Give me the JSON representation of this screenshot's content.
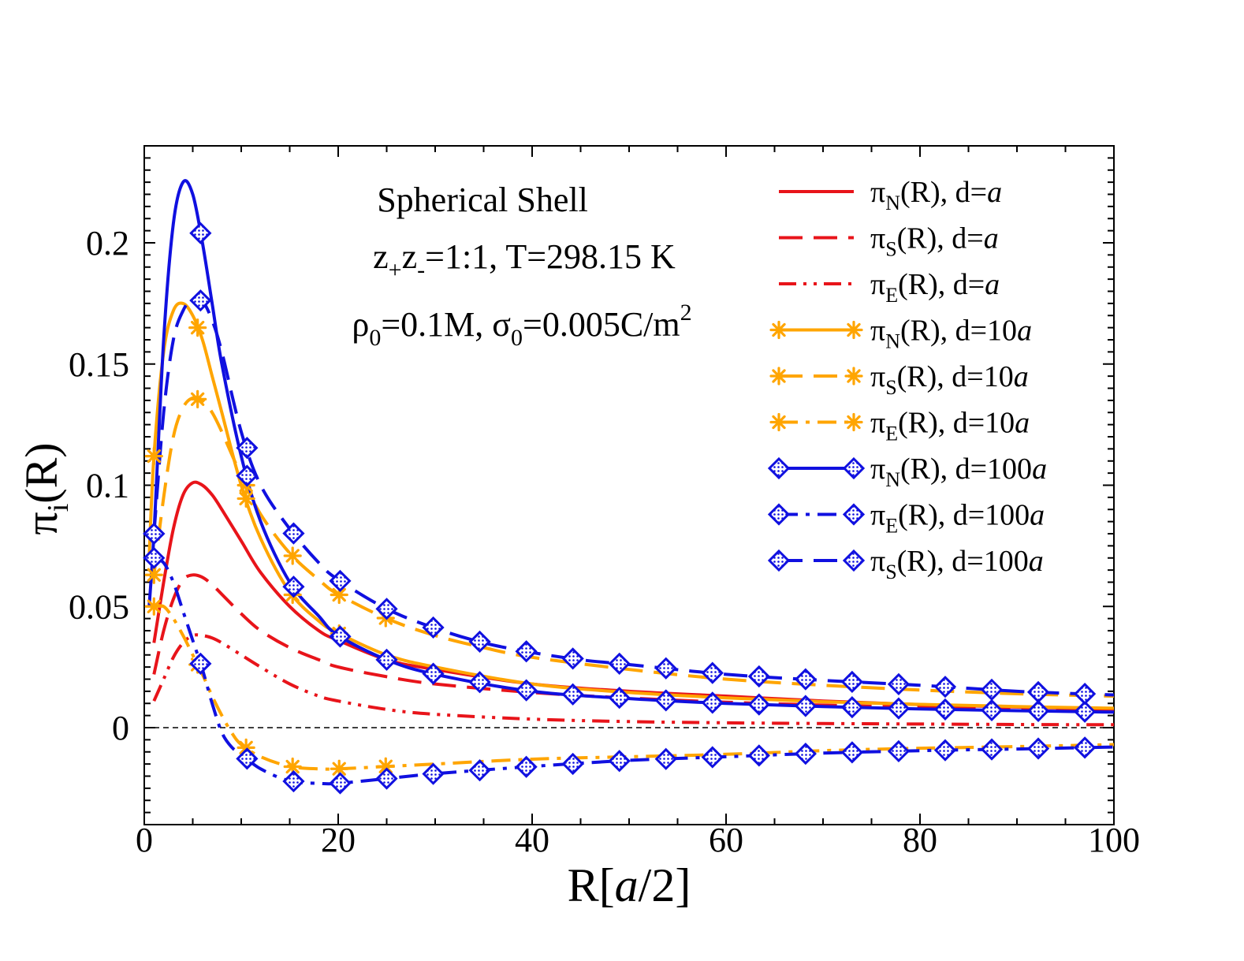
{
  "chart_data": {
    "type": "line",
    "title": "",
    "xlabel": "R[a/2]",
    "xlabel_parts": {
      "prefix": "R[",
      "italic": "a",
      "suffix": "/2]"
    },
    "ylabel": "π_i(R)",
    "ylabel_parts": {
      "main": "π",
      "sub": "i",
      "suffix": "(R)"
    },
    "xlim": [
      0,
      100
    ],
    "ylim": [
      -0.04,
      0.24
    ],
    "xticks": [
      0,
      20,
      40,
      60,
      80,
      100
    ],
    "xtick_labels": [
      "0",
      "20",
      "40",
      "60",
      "80",
      "100"
    ],
    "yticks": [
      0,
      0.05,
      0.1,
      0.15,
      0.2
    ],
    "ytick_labels": [
      "0",
      "0.05",
      "0.1",
      "0.15",
      "0.2"
    ],
    "zero_line": true,
    "grid": false,
    "legend_position": "top-right",
    "annotations": {
      "line1": "Spherical Shell",
      "line2": {
        "z": "z",
        "plus": "+",
        "minus": "-",
        "rest": "=1:1, T=298.15 K"
      },
      "line3": {
        "rho": "ρ",
        "rho_sub": "0",
        "rho_rest": "=0.1M, ",
        "sigma": "σ",
        "sigma_sub": "0",
        "sigma_rest": "=0.005C/m",
        "sup": "2"
      }
    },
    "colors": {
      "red": "#e8141a",
      "orange": "#ffa500",
      "blue": "#1010e0"
    },
    "series": [
      {
        "name": "π_N(R), d=a",
        "legend": {
          "sub": "N",
          "d": "d=",
          "unit": "a",
          "num": ""
        },
        "color": "#e8141a",
        "dash": "solid",
        "marker": "none",
        "x": [
          1,
          2,
          3,
          4,
          5,
          6,
          7,
          8,
          10,
          12,
          15,
          18,
          20,
          25,
          30,
          40,
          50,
          60,
          70,
          80,
          90,
          100
        ],
        "values": [
          0.035,
          0.06,
          0.082,
          0.096,
          0.101,
          0.1,
          0.096,
          0.09,
          0.077,
          0.064,
          0.05,
          0.04,
          0.036,
          0.028,
          0.024,
          0.018,
          0.015,
          0.013,
          0.011,
          0.0095,
          0.0085,
          0.0078
        ]
      },
      {
        "name": "π_S(R), d=a",
        "legend": {
          "sub": "S",
          "d": "d=",
          "unit": "a",
          "num": ""
        },
        "color": "#e8141a",
        "dash": "long",
        "marker": "none",
        "x": [
          1,
          2,
          3,
          4,
          5,
          6,
          7,
          8,
          10,
          12,
          15,
          18,
          20,
          25,
          30,
          40,
          50,
          60,
          70,
          80,
          90,
          100
        ],
        "values": [
          0.022,
          0.04,
          0.053,
          0.061,
          0.063,
          0.062,
          0.059,
          0.055,
          0.047,
          0.04,
          0.033,
          0.028,
          0.025,
          0.021,
          0.018,
          0.0145,
          0.0122,
          0.0105,
          0.0093,
          0.0084,
          0.0077,
          0.007
        ]
      },
      {
        "name": "π_E(R), d=a",
        "legend": {
          "sub": "E",
          "d": "d=",
          "unit": "a",
          "num": ""
        },
        "color": "#e8141a",
        "dash": "dashdotdot",
        "marker": "none",
        "x": [
          1,
          2,
          3,
          4,
          5,
          6,
          7,
          8,
          10,
          12,
          15,
          18,
          20,
          25,
          30,
          40,
          50,
          60,
          70,
          80,
          90,
          100
        ],
        "values": [
          0.011,
          0.02,
          0.029,
          0.035,
          0.038,
          0.038,
          0.037,
          0.035,
          0.03,
          0.025,
          0.018,
          0.013,
          0.011,
          0.0075,
          0.0055,
          0.0035,
          0.0025,
          0.002,
          0.0017,
          0.0015,
          0.0013,
          0.0012
        ]
      },
      {
        "name": "π_N(R), d=10a",
        "legend": {
          "sub": "N",
          "d": "d=",
          "unit": "a",
          "num": "10"
        },
        "color": "#ffa500",
        "dash": "solid",
        "marker": "star",
        "x": [
          0.5,
          1,
          2,
          3,
          4,
          5,
          6,
          7,
          8,
          10,
          12,
          15,
          18,
          20,
          25,
          30,
          40,
          50,
          60,
          70,
          80,
          90,
          100
        ],
        "values": [
          0.07,
          0.112,
          0.155,
          0.172,
          0.175,
          0.17,
          0.16,
          0.145,
          0.13,
          0.1,
          0.078,
          0.056,
          0.044,
          0.039,
          0.03,
          0.025,
          0.018,
          0.0145,
          0.0123,
          0.0107,
          0.0096,
          0.0087,
          0.008
        ],
        "marker_x": [
          1,
          5.5,
          10.5,
          15.3,
          20.1
        ]
      },
      {
        "name": "π_S(R), d=10a",
        "legend": {
          "sub": "S",
          "d": "d=",
          "unit": "a",
          "num": "10"
        },
        "color": "#ffa500",
        "dash": "long",
        "marker": "star",
        "x": [
          1,
          2,
          3,
          4,
          5,
          6,
          7,
          8,
          10,
          12,
          15,
          18,
          20,
          25,
          30,
          35,
          40,
          50,
          60,
          70,
          80,
          90,
          100
        ],
        "values": [
          0.063,
          0.095,
          0.12,
          0.132,
          0.136,
          0.135,
          0.13,
          0.122,
          0.104,
          0.088,
          0.072,
          0.061,
          0.055,
          0.045,
          0.038,
          0.033,
          0.029,
          0.024,
          0.02,
          0.0175,
          0.0155,
          0.014,
          0.013
        ],
        "marker_x": [
          1,
          5.5,
          10.5,
          15.3,
          20.1,
          24.9
        ]
      },
      {
        "name": "π_E(R), d=10a",
        "legend": {
          "sub": "E",
          "d": "d=",
          "unit": "a",
          "num": "10"
        },
        "color": "#ffa500",
        "dash": "dashdot",
        "marker": "star",
        "x": [
          1,
          2,
          3,
          4,
          5,
          6,
          7,
          8,
          9,
          10,
          12,
          15,
          18,
          20,
          25,
          30,
          40,
          50,
          60,
          70,
          80,
          90,
          100
        ],
        "values": [
          0.05,
          0.05,
          0.045,
          0.038,
          0.03,
          0.022,
          0.013,
          0.005,
          -0.002,
          -0.007,
          -0.012,
          -0.016,
          -0.017,
          -0.017,
          -0.016,
          -0.015,
          -0.013,
          -0.012,
          -0.011,
          -0.0095,
          -0.0085,
          -0.0078,
          -0.007
        ],
        "marker_x": [
          1,
          5.5,
          10.5,
          15.3,
          20.1,
          24.9
        ]
      },
      {
        "name": "π_N(R), d=100a",
        "legend": {
          "sub": "N",
          "d": "d=",
          "unit": "a",
          "num": "100"
        },
        "color": "#1010e0",
        "dash": "solid",
        "marker": "diamond",
        "x": [
          0.5,
          1,
          2,
          3,
          4,
          5,
          6,
          7,
          8,
          10,
          12,
          15,
          18,
          20,
          25,
          30,
          40,
          50,
          60,
          70,
          80,
          90,
          100
        ],
        "values": [
          0.05,
          0.08,
          0.16,
          0.208,
          0.225,
          0.22,
          0.2,
          0.175,
          0.15,
          0.112,
          0.085,
          0.06,
          0.046,
          0.038,
          0.028,
          0.022,
          0.015,
          0.012,
          0.01,
          0.0087,
          0.0077,
          0.007,
          0.0064
        ],
        "marker_x": [
          1,
          5.8,
          10.6,
          15.4,
          20.2,
          25,
          29.8,
          34.6,
          39.4,
          44.2,
          49,
          53.8,
          58.6,
          63.4,
          68.2,
          73,
          77.8,
          82.6,
          87.4,
          92.2,
          97
        ]
      },
      {
        "name": "π_E(R), d=100a",
        "legend": {
          "sub": "E",
          "d": "d=",
          "unit": "a",
          "num": "100"
        },
        "color": "#1010e0",
        "dash": "dashdot",
        "marker": "diamond",
        "x": [
          1,
          2,
          3,
          4,
          5,
          6,
          7,
          8,
          9,
          10,
          12,
          15,
          18,
          20,
          25,
          30,
          40,
          50,
          60,
          70,
          80,
          90,
          100
        ],
        "values": [
          0.07,
          0.068,
          0.06,
          0.048,
          0.036,
          0.024,
          0.01,
          -0.002,
          -0.008,
          -0.011,
          -0.017,
          -0.022,
          -0.023,
          -0.023,
          -0.021,
          -0.019,
          -0.016,
          -0.0135,
          -0.012,
          -0.0105,
          -0.0095,
          -0.0088,
          -0.008
        ],
        "marker_x": [
          1,
          5.8,
          10.6,
          15.4,
          20.2,
          25,
          29.8,
          34.6,
          39.4,
          44.2,
          49,
          53.8,
          58.6,
          63.4,
          68.2,
          73,
          77.8,
          82.6,
          87.4,
          92.2,
          97
        ]
      },
      {
        "name": "π_S(R), d=100a",
        "legend": {
          "sub": "S",
          "d": "d=",
          "unit": "a",
          "num": "100"
        },
        "color": "#1010e0",
        "dash": "long",
        "marker": "diamond",
        "x": [
          1,
          2,
          3,
          4,
          5,
          6,
          7,
          8,
          10,
          12,
          15,
          18,
          20,
          25,
          30,
          35,
          40,
          45,
          50,
          60,
          70,
          80,
          90,
          100
        ],
        "values": [
          0.08,
          0.13,
          0.16,
          0.172,
          0.177,
          0.176,
          0.168,
          0.155,
          0.122,
          0.1,
          0.082,
          0.068,
          0.061,
          0.049,
          0.041,
          0.035,
          0.031,
          0.028,
          0.026,
          0.022,
          0.0195,
          0.0175,
          0.015,
          0.0135
        ],
        "marker_x": [
          1,
          5.8,
          10.6,
          15.4,
          20.2,
          25,
          29.8,
          34.6,
          39.4,
          44.2,
          49,
          53.8,
          58.6,
          63.4,
          68.2,
          73,
          77.8,
          82.6,
          87.4,
          92.2,
          97
        ]
      }
    ]
  }
}
